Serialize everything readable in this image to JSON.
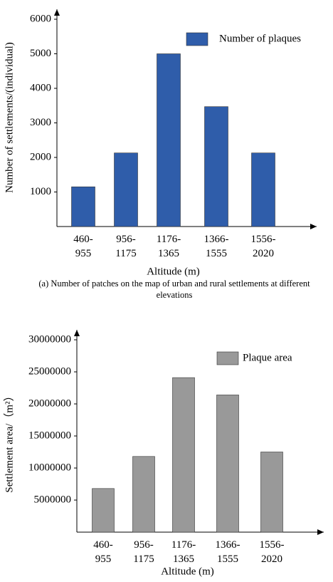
{
  "chart_data": [
    {
      "type": "bar",
      "caption": "(a) Number of patches on the map of urban and rural settlements at different elevations",
      "x_label": "Altitude (m)",
      "y_label": "Number of settlements/(individual)",
      "categories": [
        "460-955",
        "956-1175",
        "1176-1365",
        "1366-1555",
        "1556-2020"
      ],
      "series": [
        {
          "name": "Number of plaques",
          "color": "#2f5daa",
          "values": [
            1150,
            2130,
            5000,
            3470,
            2130
          ]
        }
      ],
      "ylim": [
        0,
        6000
      ],
      "yticks": [
        1000,
        2000,
        3000,
        4000,
        5000,
        6000
      ]
    },
    {
      "type": "bar",
      "x_label": "Altitude (m)",
      "y_label": "Settlement area/（m²）",
      "categories": [
        "460-955",
        "956-1175",
        "1176-1365",
        "1366-1555",
        "1556-2020"
      ],
      "series": [
        {
          "name": "Plaque area",
          "color": "#999999",
          "values": [
            6800000,
            11800000,
            24100000,
            21400000,
            12500000
          ]
        }
      ],
      "ylim": [
        0,
        30000000
      ],
      "yticks": [
        5000000,
        10000000,
        15000000,
        20000000,
        25000000,
        30000000
      ]
    }
  ]
}
